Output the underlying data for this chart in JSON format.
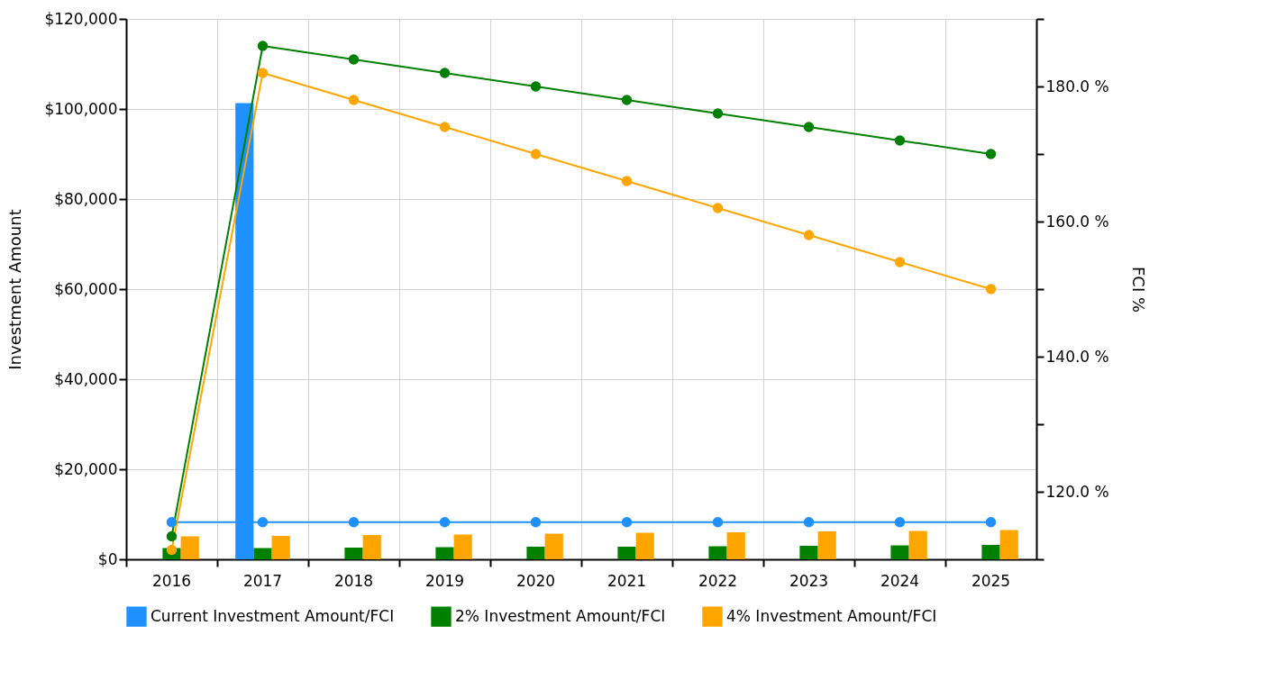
{
  "chart_data": {
    "type": "bar",
    "xlabel": null,
    "ylabel": "Investment  Amount",
    "y2label": "FCI %",
    "categories": [
      "2016",
      "2017",
      "2018",
      "2019",
      "2020",
      "2021",
      "2022",
      "2023",
      "2024",
      "2025"
    ],
    "series": [
      {
        "name": "Current Investment Amount/FCI",
        "color": "#1e90ff",
        "values": [
          null,
          101300,
          null,
          null,
          null,
          null,
          null,
          null,
          null,
          null
        ]
      },
      {
        "name": "2% Investment Amount/FCI",
        "color": "#008000",
        "values": [
          2500,
          2500,
          2600,
          2700,
          2800,
          2800,
          2900,
          3000,
          3100,
          3200
        ]
      },
      {
        "name": "4% Investment Amount/FCI",
        "color": "#ffa500",
        "values": [
          5100,
          5200,
          5400,
          5500,
          5700,
          5900,
          6000,
          6200,
          6300,
          6500
        ]
      },
      {
        "type": "line",
        "axis": "y2",
        "color": "#1e90ff",
        "marker": "circle",
        "values": [
          115.5,
          115.5,
          115.5,
          115.5,
          115.5,
          115.5,
          115.5,
          115.5,
          115.5,
          115.5
        ]
      },
      {
        "type": "line",
        "axis": "y2",
        "color": "#008000",
        "marker": "circle",
        "values": [
          113.4,
          186,
          184,
          182,
          180,
          178,
          176,
          174,
          172,
          170
        ]
      },
      {
        "type": "line",
        "axis": "y2",
        "color": "#ffa500",
        "marker": "circle",
        "values": [
          111.4,
          182,
          178,
          174,
          170,
          166,
          162,
          158,
          154,
          150
        ]
      }
    ],
    "ylim": [
      0,
      120000
    ],
    "yticks": [
      {
        "value": 0,
        "label": "$0"
      },
      {
        "value": 20000,
        "label": "$20,000"
      },
      {
        "value": 40000,
        "label": "$40,000"
      },
      {
        "value": 60000,
        "label": "$60,000"
      },
      {
        "value": 80000,
        "label": "$80,000"
      },
      {
        "value": 100000,
        "label": "$100,000"
      },
      {
        "value": 120000,
        "label": "$120,000"
      }
    ],
    "y2lim": [
      110,
      190
    ],
    "y2ticks": [
      {
        "value": 110,
        "label": null
      },
      {
        "value": 120,
        "label": "120.0 %"
      },
      {
        "value": 130,
        "label": null
      },
      {
        "value": 140,
        "label": "140.0 %"
      },
      {
        "value": 150,
        "label": null
      },
      {
        "value": 160,
        "label": "160.0 %"
      },
      {
        "value": 170,
        "label": null
      },
      {
        "value": 180,
        "label": "180.0 %"
      },
      {
        "value": 190,
        "label": null
      }
    ],
    "grid": true,
    "legend": "bottom"
  }
}
